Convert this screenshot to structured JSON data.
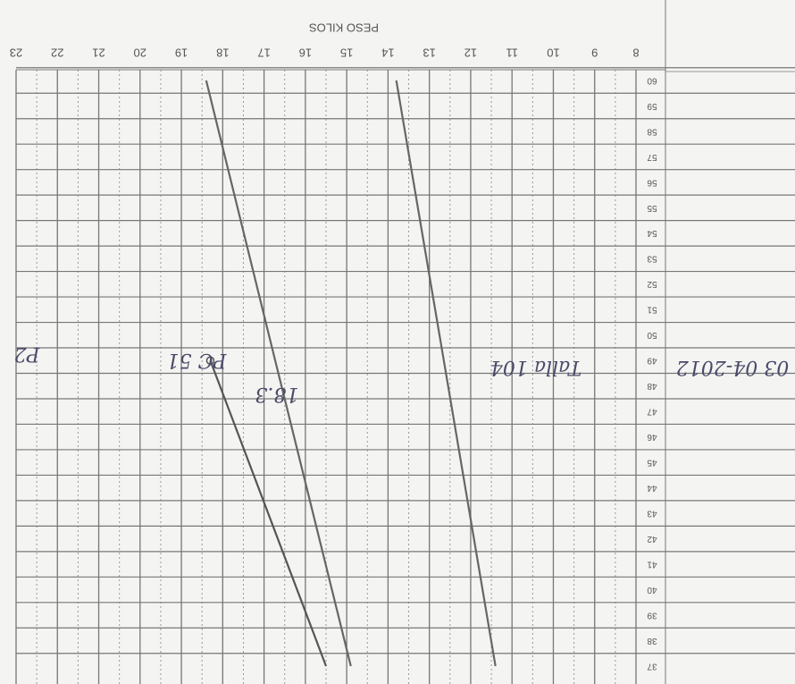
{
  "chart_data": {
    "type": "line",
    "x_label": "PESO KILOS",
    "x": [
      37,
      49,
      60
    ],
    "xticks": [
      37,
      38,
      39,
      40,
      41,
      42,
      43,
      44,
      45,
      46,
      47,
      48,
      49,
      50,
      51,
      52,
      53,
      54,
      55,
      56,
      57,
      58,
      59,
      60
    ],
    "ylim": [
      8,
      23
    ],
    "yticks": [
      8,
      9,
      10,
      11,
      12,
      13,
      14,
      15,
      16,
      17,
      18,
      19,
      20,
      21,
      22,
      23
    ],
    "series": [
      {
        "color": "#666",
        "values": [
          14.9,
          16.73,
          18.4
        ]
      },
      {
        "color": "#666",
        "values": [
          11.4,
          12.65,
          13.8
        ]
      },
      {
        "color": "#555",
        "values": [
          15.5,
          18.3,
          null
        ]
      }
    ],
    "point": {
      "x": 49,
      "value": 18.3
    },
    "annotations": [
      "03 04-2012",
      "Talla 104",
      "PC 51",
      "18.3",
      "P2"
    ],
    "grid": true
  }
}
